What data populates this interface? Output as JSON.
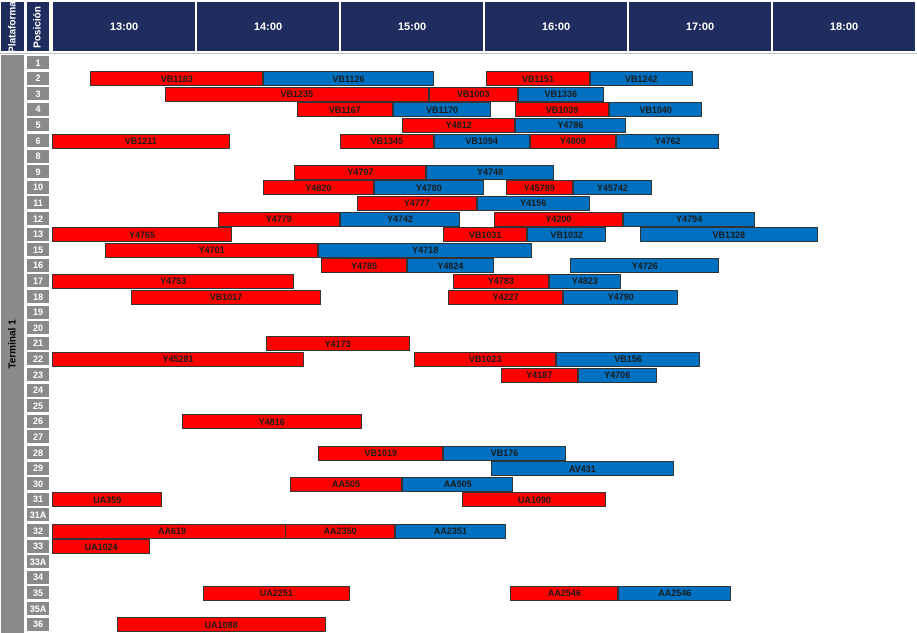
{
  "header": {
    "platform_label": "Plataforma",
    "position_label": "Posición",
    "times": [
      "13:00",
      "14:00",
      "15:00",
      "16:00",
      "17:00",
      "18:00"
    ]
  },
  "terminal_label": "Terminal 1",
  "colors": {
    "header_bg": "#1e2d5e",
    "row_label_bg": "#8a8a8a",
    "red": "#ff0000",
    "blue": "#0070c0"
  },
  "positions": [
    "1",
    "2",
    "3",
    "4",
    "5",
    "6",
    "8",
    "9",
    "10",
    "11",
    "12",
    "13",
    "15",
    "16",
    "17",
    "18",
    "19",
    "20",
    "21",
    "22",
    "23",
    "24",
    "25",
    "26",
    "27",
    "28",
    "29",
    "30",
    "31",
    "31A",
    "32",
    "33",
    "33A",
    "34",
    "35",
    "35A",
    "36"
  ],
  "bars": [
    {
      "row": "2",
      "label": "VB1183",
      "start": "12:46",
      "end": "13:58",
      "color": "red"
    },
    {
      "row": "2",
      "label": "VB1126",
      "start": "13:58",
      "end": "15:09",
      "color": "blue"
    },
    {
      "row": "2",
      "label": "VB1151",
      "start": "15:31",
      "end": "16:14",
      "color": "red"
    },
    {
      "row": "2",
      "label": "VB1242",
      "start": "16:14",
      "end": "16:57",
      "color": "blue"
    },
    {
      "row": "3",
      "label": "VB1235",
      "start": "13:17",
      "end": "15:07",
      "color": "red"
    },
    {
      "row": "3",
      "label": "VB1003",
      "start": "15:07",
      "end": "15:44",
      "color": "red"
    },
    {
      "row": "3",
      "label": "VB1336",
      "start": "15:44",
      "end": "16:20",
      "color": "blue"
    },
    {
      "row": "4",
      "label": "VB1167",
      "start": "14:12",
      "end": "14:52",
      "color": "red"
    },
    {
      "row": "4",
      "label": "VB1170",
      "start": "14:52",
      "end": "15:33",
      "color": "blue"
    },
    {
      "row": "4",
      "label": "VB1039",
      "start": "15:43",
      "end": "16:22",
      "color": "red"
    },
    {
      "row": "4",
      "label": "VB1040",
      "start": "16:22",
      "end": "17:01",
      "color": "blue"
    },
    {
      "row": "5",
      "label": "Y4812",
      "start": "14:56",
      "end": "15:43",
      "color": "red"
    },
    {
      "row": "5",
      "label": "Y4786",
      "start": "15:43",
      "end": "16:29",
      "color": "blue"
    },
    {
      "row": "6",
      "label": "VB1211",
      "start": "12:19",
      "end": "13:44",
      "color": "red"
    },
    {
      "row": "6",
      "label": "VB1345",
      "start": "14:30",
      "end": "15:09",
      "color": "red"
    },
    {
      "row": "6",
      "label": "VB1094",
      "start": "15:09",
      "end": "15:49",
      "color": "blue"
    },
    {
      "row": "6",
      "label": "Y4809",
      "start": "15:49",
      "end": "16:25",
      "color": "red"
    },
    {
      "row": "6",
      "label": "Y4762",
      "start": "16:25",
      "end": "17:08",
      "color": "blue"
    },
    {
      "row": "9",
      "label": "Y4797",
      "start": "14:11",
      "end": "15:06",
      "color": "red"
    },
    {
      "row": "9",
      "label": "Y4748",
      "start": "15:06",
      "end": "15:59",
      "color": "blue"
    },
    {
      "row": "10",
      "label": "Y4820",
      "start": "13:58",
      "end": "14:44",
      "color": "red"
    },
    {
      "row": "10",
      "label": "Y4780",
      "start": "14:44",
      "end": "15:30",
      "color": "blue"
    },
    {
      "row": "10",
      "label": "Y45789",
      "start": "15:39",
      "end": "16:07",
      "color": "red"
    },
    {
      "row": "10",
      "label": "Y45742",
      "start": "16:07",
      "end": "16:40",
      "color": "blue"
    },
    {
      "row": "11",
      "label": "Y4777",
      "start": "14:37",
      "end": "15:27",
      "color": "red"
    },
    {
      "row": "11",
      "label": "Y4156",
      "start": "15:27",
      "end": "16:14",
      "color": "blue"
    },
    {
      "row": "12",
      "label": "Y4779",
      "start": "13:39",
      "end": "14:30",
      "color": "red"
    },
    {
      "row": "12",
      "label": "Y4742",
      "start": "14:30",
      "end": "15:20",
      "color": "blue"
    },
    {
      "row": "12",
      "label": "Y4200",
      "start": "15:34",
      "end": "16:28",
      "color": "red"
    },
    {
      "row": "12",
      "label": "Y4794",
      "start": "16:28",
      "end": "17:23",
      "color": "blue"
    },
    {
      "row": "13",
      "label": "Y4765",
      "start": "12:21",
      "end": "13:45",
      "color": "red"
    },
    {
      "row": "13",
      "label": "VB1031",
      "start": "15:13",
      "end": "15:48",
      "color": "red"
    },
    {
      "row": "13",
      "label": "VB1032",
      "start": "15:48",
      "end": "16:21",
      "color": "blue"
    },
    {
      "row": "13",
      "label": "VB1328",
      "start": "16:35",
      "end": "17:49",
      "color": "blue"
    },
    {
      "row": "15",
      "label": "Y4701",
      "start": "12:52",
      "end": "14:21",
      "color": "red"
    },
    {
      "row": "15",
      "label": "Y4718",
      "start": "14:21",
      "end": "15:50",
      "color": "blue"
    },
    {
      "row": "16",
      "label": "Y4785",
      "start": "14:22",
      "end": "14:58",
      "color": "red"
    },
    {
      "row": "16",
      "label": "Y4824",
      "start": "14:58",
      "end": "15:34",
      "color": "blue"
    },
    {
      "row": "16",
      "label": "Y4726",
      "start": "16:06",
      "end": "17:08",
      "color": "blue"
    },
    {
      "row": "17",
      "label": "Y4753",
      "start": "12:00",
      "end": "14:11",
      "color": "red"
    },
    {
      "row": "17",
      "label": "Y4783",
      "start": "15:17",
      "end": "15:57",
      "color": "red"
    },
    {
      "row": "17",
      "label": "Y4823",
      "start": "15:57",
      "end": "16:27",
      "color": "blue"
    },
    {
      "row": "18",
      "label": "VB1017",
      "start": "13:03",
      "end": "14:22",
      "color": "red"
    },
    {
      "row": "18",
      "label": "Y4227",
      "start": "15:15",
      "end": "16:03",
      "color": "red"
    },
    {
      "row": "18",
      "label": "Y4790",
      "start": "16:03",
      "end": "16:51",
      "color": "blue"
    },
    {
      "row": "21",
      "label": "Y4173",
      "start": "13:59",
      "end": "14:59",
      "color": "red"
    },
    {
      "row": "22",
      "label": "Y45281",
      "start": "12:27",
      "end": "14:15",
      "color": "red"
    },
    {
      "row": "22",
      "label": "VB1023",
      "start": "15:01",
      "end": "16:00",
      "color": "red"
    },
    {
      "row": "22",
      "label": "VB156",
      "start": "16:00",
      "end": "17:00",
      "color": "blue"
    },
    {
      "row": "23",
      "label": "Y4187",
      "start": "15:37",
      "end": "16:09",
      "color": "red"
    },
    {
      "row": "23",
      "label": "Y4706",
      "start": "16:09",
      "end": "16:42",
      "color": "blue"
    },
    {
      "row": "26",
      "label": "Y4816",
      "start": "13:24",
      "end": "14:39",
      "color": "red"
    },
    {
      "row": "28",
      "label": "VB1019",
      "start": "14:21",
      "end": "15:13",
      "color": "red"
    },
    {
      "row": "28",
      "label": "VB176",
      "start": "15:13",
      "end": "16:04",
      "color": "blue"
    },
    {
      "row": "29",
      "label": "AV431",
      "start": "15:33",
      "end": "16:49",
      "color": "blue"
    },
    {
      "row": "30",
      "label": "AA505",
      "start": "14:09",
      "end": "14:56",
      "color": "red"
    },
    {
      "row": "30",
      "label": "AA505",
      "start": "14:56",
      "end": "15:42",
      "color": "blue"
    },
    {
      "row": "31",
      "label": "UA359",
      "start": "12:15",
      "end": "13:16",
      "color": "red"
    },
    {
      "row": "31",
      "label": "UA1090",
      "start": "15:21",
      "end": "16:21",
      "color": "red"
    },
    {
      "row": "32",
      "label": "AA619",
      "start": "12:23",
      "end": "14:10",
      "color": "red"
    },
    {
      "row": "32",
      "label": "AA2350",
      "start": "14:07",
      "end": "14:53",
      "color": "red"
    },
    {
      "row": "32",
      "label": "AA2351",
      "start": "14:53",
      "end": "15:39",
      "color": "blue"
    },
    {
      "row": "33",
      "label": "UA1024",
      "start": "12:10",
      "end": "13:11",
      "color": "red"
    },
    {
      "row": "35",
      "label": "UA2251",
      "start": "13:33",
      "end": "14:34",
      "color": "red"
    },
    {
      "row": "35",
      "label": "AA2546",
      "start": "15:41",
      "end": "16:26",
      "color": "red"
    },
    {
      "row": "35",
      "label": "AA2546",
      "start": "16:26",
      "end": "17:13",
      "color": "blue"
    },
    {
      "row": "36",
      "label": "UA1088",
      "start": "12:57",
      "end": "14:24",
      "color": "red"
    }
  ]
}
